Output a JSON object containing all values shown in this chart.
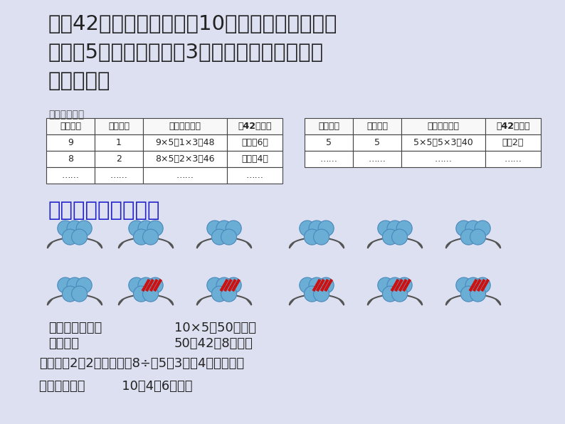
{
  "bg_color": "#dde0f0",
  "title_lines": [
    "全班42人去公园划船，租10只船正好坐满。每只",
    "大船坐5人，每只小船坐3人。租的大船、小船各",
    "有多少只？"
  ],
  "title_fontsize": 21,
  "title_color": "#222222",
  "strategy1_label": "策略一、列举",
  "strategy2_label": "策略二：画图、假设",
  "table1_headers": [
    "大船只数",
    "小船只数",
    "乘坐的总人数",
    "和42人比较"
  ],
  "table1_rows": [
    [
      "9",
      "1",
      "9×5＋1×3＝48",
      "超出了6人"
    ],
    [
      "8",
      "2",
      "8×5＋2×3＝46",
      "超出了4人"
    ],
    [
      "……",
      "……",
      "……",
      "……"
    ]
  ],
  "table2_headers": [
    "大船只数",
    "小船只数",
    "乘坐的总人数",
    "和42人比较"
  ],
  "table2_rows": [
    [
      "5",
      "5",
      "5×5＋5×3＝40",
      "还有2人"
    ],
    [
      "……",
      "……",
      "……",
      "……"
    ]
  ],
  "ball_color": "#6aaed6",
  "ball_edge_color": "#4a88bb",
  "red_color": "#cc1111",
  "boat_color": "#555555",
  "row1_boats": 5,
  "row2_boats": 5,
  "row2_cross_from": 1
}
